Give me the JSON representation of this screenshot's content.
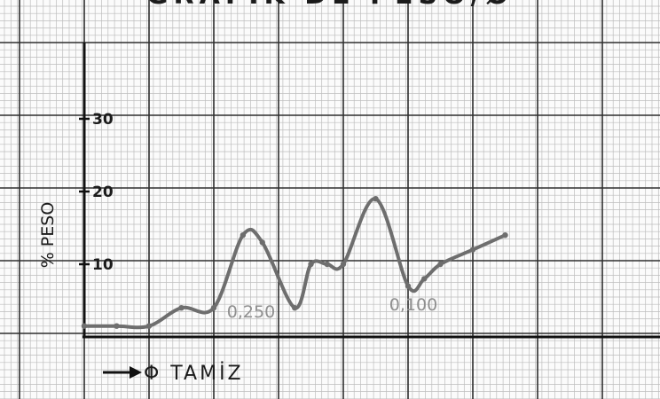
{
  "chart_data": {
    "type": "line",
    "title": "GRAFİK DE PESO/Ø",
    "xlabel": "Φ TAMİZ",
    "ylabel": "% PESO",
    "x": [
      0,
      1,
      2,
      3,
      4,
      4.9,
      5.5,
      6.5,
      7,
      7.5,
      8,
      9,
      10,
      10.5,
      11,
      12,
      13
    ],
    "y": [
      1.5,
      1.5,
      1.5,
      4,
      4,
      14,
      13,
      4,
      10,
      10,
      10,
      19,
      7,
      8,
      10,
      12,
      14
    ],
    "ylim": [
      0,
      35
    ],
    "y_ticks": [
      "10",
      "20",
      "30"
    ],
    "annotations": [
      "0,250",
      "0,100"
    ],
    "grid": true,
    "colors": {
      "line": "#6e6e6e",
      "grid_minor": "#bdbdbd",
      "grid_major": "#2e2e2e",
      "ink": "#1b1b1b",
      "pencil": "#8f8f8f"
    }
  }
}
